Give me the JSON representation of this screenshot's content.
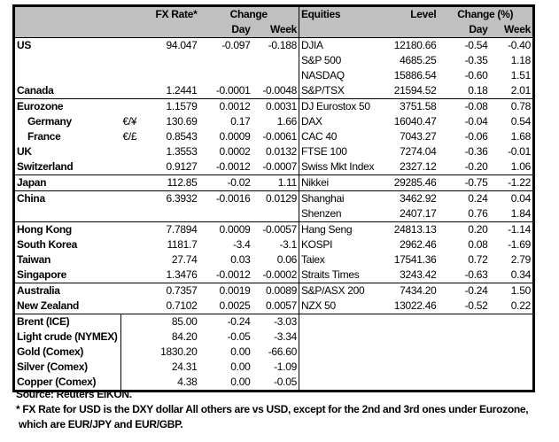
{
  "header": {
    "fx_rate": "FX Rate*",
    "change": "Change",
    "day": "Day",
    "week": "Week",
    "equities": "Equities",
    "level": "Level",
    "change_pct": "Change (%)",
    "eq_day": "Day",
    "eq_week": "Week"
  },
  "groups": [
    [
      {
        "name": "US",
        "code": "",
        "fx": "94.047",
        "day": "-0.097",
        "week": "-0.188",
        "equity": "DJIA",
        "level": "12180.66",
        "eq_day": "-0.54",
        "eq_week": "-0.40"
      },
      {
        "name": "",
        "code": "",
        "fx": "",
        "day": "",
        "week": "",
        "equity": "S&P 500",
        "level": "4685.25",
        "eq_day": "-0.35",
        "eq_week": "1.18"
      },
      {
        "name": "",
        "code": "",
        "fx": "",
        "day": "",
        "week": "",
        "equity": "NASDAQ",
        "level": "15886.54",
        "eq_day": "-0.60",
        "eq_week": "1.51"
      },
      {
        "name": "Canada",
        "code": "",
        "fx": "1.2441",
        "day": "-0.0001",
        "week": "-0.0048",
        "equity": "S&P/TSX",
        "level": "21594.52",
        "eq_day": "0.18",
        "eq_week": "2.01"
      }
    ],
    [
      {
        "name": "Eurozone",
        "code": "",
        "fx": "1.1579",
        "day": "0.0012",
        "week": "0.0031",
        "equity": "DJ Eurostox 50",
        "level": "3751.58",
        "eq_day": "-0.08",
        "eq_week": "0.78"
      },
      {
        "name": "Germany",
        "indent": true,
        "code": "€/¥",
        "fx": "130.69",
        "day": "0.17",
        "week": "1.66",
        "equity": "DAX",
        "level": "16040.47",
        "eq_day": "-0.04",
        "eq_week": "0.54"
      },
      {
        "name": "France",
        "indent": true,
        "code": "€/£",
        "fx": "0.8543",
        "day": "0.0009",
        "week": "-0.0061",
        "equity": "CAC 40",
        "level": "7043.27",
        "eq_day": "-0.06",
        "eq_week": "1.68"
      },
      {
        "name": "UK",
        "code": "",
        "fx": "1.3553",
        "day": "0.0002",
        "week": "0.0132",
        "equity": "FTSE 100",
        "level": "7274.04",
        "eq_day": "-0.36",
        "eq_week": "-0.01"
      },
      {
        "name": "Switzerland",
        "code": "",
        "fx": "0.9127",
        "day": "-0.0012",
        "week": "-0.0007",
        "equity": "Swiss Mkt Index",
        "level": "2327.12",
        "eq_day": "-0.20",
        "eq_week": "1.06"
      }
    ],
    [
      {
        "name": "Japan",
        "code": "",
        "fx": "112.85",
        "day": "-0.02",
        "week": "1.11",
        "equity": "Nikkei",
        "level": "29285.46",
        "eq_day": "-0.75",
        "eq_week": "-1.22"
      }
    ],
    [
      {
        "name": "China",
        "code": "",
        "fx": "6.3932",
        "day": "-0.0016",
        "week": "0.0129",
        "equity": "Shanghai",
        "level": "3462.92",
        "eq_day": "0.24",
        "eq_week": "0.04"
      },
      {
        "name": "",
        "code": "",
        "fx": "",
        "day": "",
        "week": "",
        "equity": "Shenzen",
        "level": "2407.17",
        "eq_day": "0.76",
        "eq_week": "1.84"
      }
    ],
    [
      {
        "name": "Hong Kong",
        "code": "",
        "fx": "7.7894",
        "day": "0.0009",
        "week": "-0.0057",
        "equity": "Hang Seng",
        "level": "24813.13",
        "eq_day": "0.20",
        "eq_week": "-1.14"
      },
      {
        "name": "South Korea",
        "code": "",
        "fx": "1181.7",
        "day": "-3.4",
        "week": "-3.1",
        "equity": "KOSPI",
        "level": "2962.46",
        "eq_day": "0.08",
        "eq_week": "-1.69"
      },
      {
        "name": "Taiwan",
        "code": "",
        "fx": "27.74",
        "day": "0.03",
        "week": "0.06",
        "equity": "Taiex",
        "level": "17541.36",
        "eq_day": "0.72",
        "eq_week": "2.79"
      },
      {
        "name": "Singapore",
        "code": "",
        "fx": "1.3476",
        "day": "-0.0012",
        "week": "-0.0002",
        "equity": "Straits Times",
        "level": "3243.42",
        "eq_day": "-0.63",
        "eq_week": "0.34"
      }
    ],
    [
      {
        "name": "Australia",
        "code": "",
        "fx": "0.7357",
        "day": "0.0019",
        "week": "0.0089",
        "equity": "S&P/ASX  200",
        "level": "7434.20",
        "eq_day": "-0.24",
        "eq_week": "1.50"
      },
      {
        "name": "New Zealand",
        "code": "",
        "fx": "0.7102",
        "day": "0.0025",
        "week": "0.0057",
        "equity": "NZX 50",
        "level": "13022.46",
        "eq_day": "-0.52",
        "eq_week": "0.22"
      }
    ],
    [
      {
        "name": "Brent (ICE)",
        "commodity": true,
        "code": "",
        "fx": "85.00",
        "day": "-0.24",
        "week": "-3.03",
        "equity": "",
        "level": "",
        "eq_day": "",
        "eq_week": ""
      },
      {
        "name": "Light crude (NYMEX)",
        "commodity": true,
        "code": "",
        "fx": "84.20",
        "day": "-0.05",
        "week": "-3.34",
        "equity": "",
        "level": "",
        "eq_day": "",
        "eq_week": ""
      },
      {
        "name": "Gold (Comex)",
        "commodity": true,
        "code": "",
        "fx": "1830.20",
        "day": "0.00",
        "week": "-66.60",
        "equity": "",
        "level": "",
        "eq_day": "",
        "eq_week": ""
      },
      {
        "name": "Silver (Comex)",
        "commodity": true,
        "code": "",
        "fx": "24.31",
        "day": "0.00",
        "week": "-1.09",
        "equity": "",
        "level": "",
        "eq_day": "",
        "eq_week": ""
      },
      {
        "name": "Copper (Comex)",
        "commodity": true,
        "code": "",
        "fx": "4.38",
        "day": "0.00",
        "week": "-0.05",
        "equity": "",
        "level": "",
        "eq_day": "",
        "eq_week": ""
      }
    ]
  ],
  "footer": {
    "source": "Source:  Reuters EIKON.",
    "note_line1": "* FX Rate for USD is the DXY dollar  All others are vs USD, except for the 2nd and 3rd ones under Eurozone,",
    "note_line2": " which are EUR/JPY and EUR/GBP."
  },
  "colors": {
    "header_bg": "#c0c0c0",
    "border": "#000000"
  }
}
